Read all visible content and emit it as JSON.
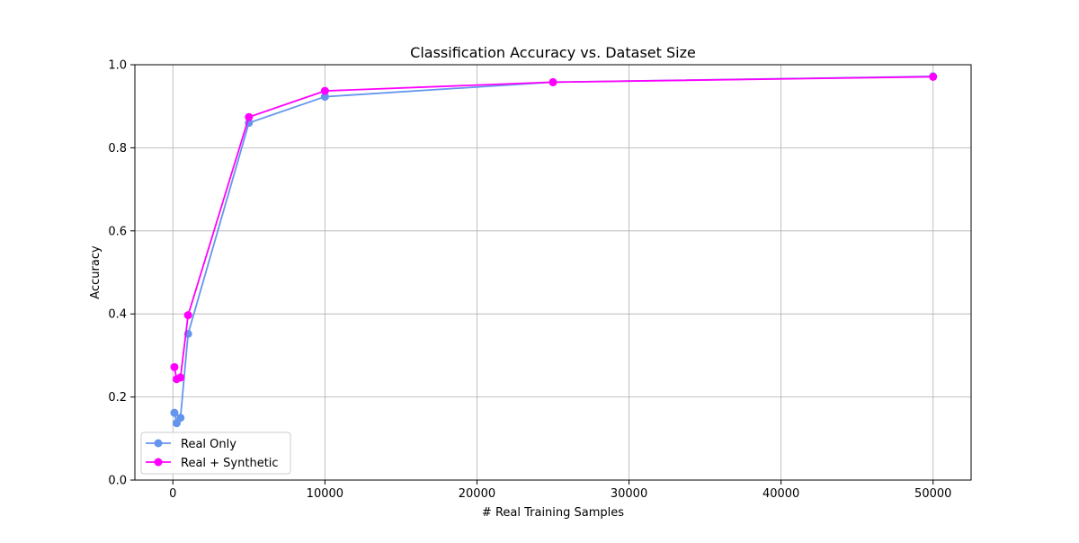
{
  "chart_data": {
    "type": "line",
    "title": "Classification Accuracy vs. Dataset Size",
    "xlabel": "# Real Training Samples",
    "ylabel": "Accuracy",
    "xlim": [
      -2500,
      52500
    ],
    "ylim": [
      0.0,
      1.0
    ],
    "xticks": [
      0,
      10000,
      20000,
      30000,
      40000,
      50000
    ],
    "xtick_labels": [
      "0",
      "10000",
      "20000",
      "30000",
      "40000",
      "50000"
    ],
    "yticks": [
      0.0,
      0.2,
      0.4,
      0.6,
      0.8,
      1.0
    ],
    "ytick_labels": [
      "0.0",
      "0.2",
      "0.4",
      "0.6",
      "0.8",
      "1.0"
    ],
    "grid": true,
    "legend_position": "lower-left",
    "series": [
      {
        "name": "Real Only",
        "color": "#6495ED",
        "marker": "circle",
        "x": [
          100,
          250,
          500,
          1000,
          5000,
          10000,
          25000,
          50000
        ],
        "y": [
          0.162,
          0.137,
          0.15,
          0.352,
          0.86,
          0.923,
          0.958,
          0.972
        ]
      },
      {
        "name": "Real + Synthetic",
        "color": "#FF00FF",
        "marker": "circle",
        "x": [
          100,
          250,
          500,
          1000,
          5000,
          10000,
          25000,
          50000
        ],
        "y": [
          0.272,
          0.243,
          0.247,
          0.397,
          0.874,
          0.937,
          0.958,
          0.971
        ]
      }
    ]
  }
}
